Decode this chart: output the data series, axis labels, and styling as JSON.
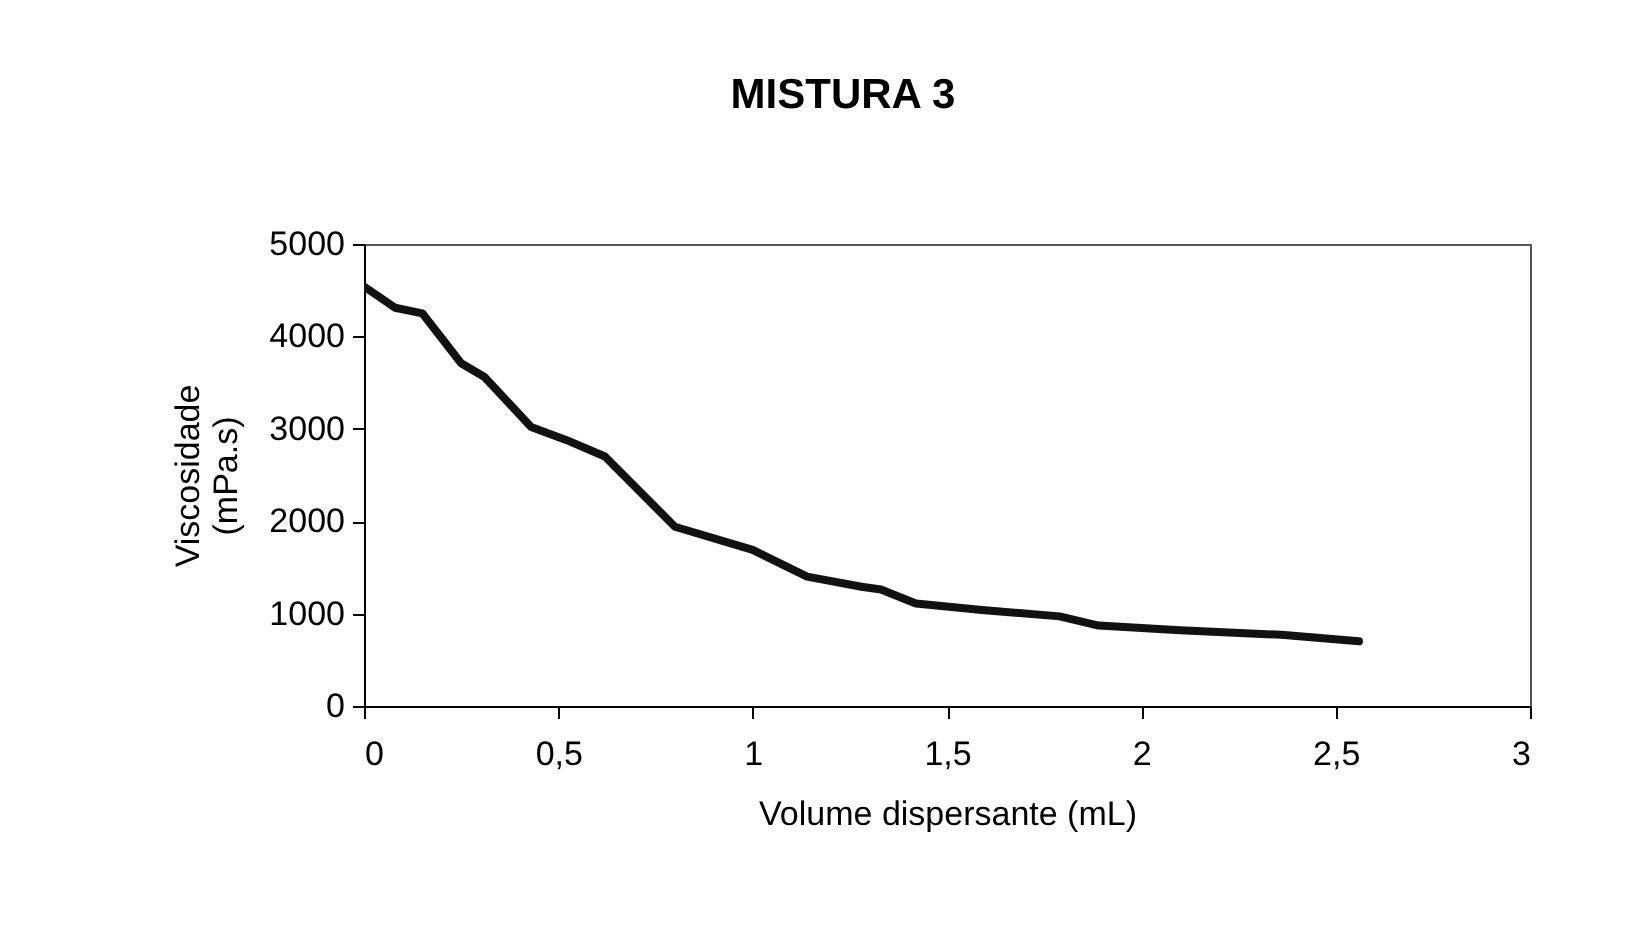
{
  "chart_data": {
    "type": "line",
    "title": "MISTURA 3",
    "xlabel": "Volume dispersante (mL)",
    "ylabel": "Viscosidade (mPa.s)",
    "x": [
      0,
      0.08,
      0.15,
      0.25,
      0.31,
      0.43,
      0.52,
      0.62,
      0.8,
      1.0,
      1.14,
      1.28,
      1.33,
      1.42,
      1.59,
      1.79,
      1.89,
      2.1,
      2.36,
      2.56
    ],
    "series": [
      {
        "color": "#111111",
        "values": [
          4540,
          4310,
          4250,
          3710,
          3560,
          3020,
          2880,
          2700,
          1940,
          1690,
          1400,
          1290,
          1260,
          1110,
          1040,
          970,
          870,
          820,
          770,
          700
        ]
      }
    ],
    "xlim": [
      0,
      3
    ],
    "xticks": [
      0,
      {
        "value": 0.5,
        "label": "0,5"
      },
      1,
      {
        "value": 1.5,
        "label": "1,5"
      },
      2,
      {
        "value": 2.5,
        "label": "2,5"
      },
      3
    ],
    "ylim": [
      0,
      5000
    ],
    "yticks": [
      0,
      1000,
      2000,
      3000,
      4000,
      5000
    ],
    "grid": false,
    "marker": "none",
    "line_style": "solid"
  }
}
